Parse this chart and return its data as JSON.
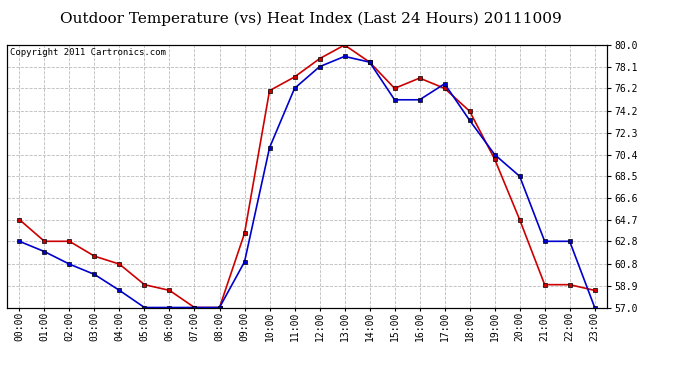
{
  "title": "Outdoor Temperature (vs) Heat Index (Last 24 Hours) 20111009",
  "copyright": "Copyright 2011 Cartronics.com",
  "x_labels": [
    "00:00",
    "01:00",
    "02:00",
    "03:00",
    "04:00",
    "05:00",
    "06:00",
    "07:00",
    "08:00",
    "09:00",
    "10:00",
    "11:00",
    "12:00",
    "13:00",
    "14:00",
    "15:00",
    "16:00",
    "17:00",
    "18:00",
    "19:00",
    "20:00",
    "21:00",
    "22:00",
    "23:00"
  ],
  "temp_values": [
    62.8,
    61.9,
    60.8,
    59.9,
    58.5,
    57.0,
    57.0,
    57.0,
    57.0,
    61.0,
    71.0,
    76.2,
    78.1,
    79.0,
    78.5,
    75.2,
    75.2,
    76.6,
    73.4,
    70.4,
    68.5,
    62.8,
    62.8,
    57.0
  ],
  "heat_values": [
    64.7,
    62.8,
    62.8,
    61.5,
    60.8,
    59.0,
    58.5,
    57.0,
    57.0,
    63.5,
    76.0,
    77.2,
    78.8,
    80.0,
    78.5,
    76.2,
    77.1,
    76.2,
    74.2,
    70.0,
    64.7,
    59.0,
    59.0,
    58.5
  ],
  "temp_color": "#0000cc",
  "heat_color": "#cc0000",
  "ylim_min": 57.0,
  "ylim_max": 80.0,
  "y_ticks": [
    57.0,
    58.9,
    60.8,
    62.8,
    64.7,
    66.6,
    68.5,
    70.4,
    72.3,
    74.2,
    76.2,
    78.1,
    80.0
  ],
  "background_color": "#ffffff",
  "grid_color": "#bbbbbb",
  "title_fontsize": 11,
  "copyright_fontsize": 6.5,
  "tick_fontsize": 7
}
